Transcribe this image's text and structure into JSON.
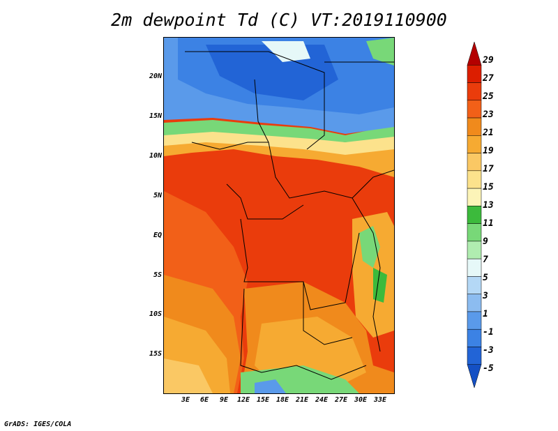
{
  "title": "2m dewpoint Td (C) VT:2019110900",
  "footer": "GrADS: IGES/COLA",
  "y_axis": {
    "labels": [
      "20N",
      "15N",
      "10N",
      "5N",
      "EQ",
      "5S",
      "10S",
      "15S"
    ]
  },
  "x_axis": {
    "labels": [
      "3E",
      "6E",
      "9E",
      "12E",
      "15E",
      "18E",
      "21E",
      "24E",
      "27E",
      "30E",
      "33E"
    ]
  },
  "colorbar": {
    "labels": [
      "29",
      "27",
      "25",
      "23",
      "21",
      "19",
      "17",
      "15",
      "13",
      "11",
      "9",
      "7",
      "5",
      "3",
      "1",
      "-1",
      "-3",
      "-5"
    ],
    "colors": [
      "#b40000",
      "#dc1e00",
      "#ea3c0c",
      "#f26018",
      "#f08a1c",
      "#f6aa32",
      "#fac864",
      "#fce28c",
      "#fcf4b8",
      "#3cba3c",
      "#78d878",
      "#b0ecb0",
      "#e6f8f8",
      "#b4d8f6",
      "#8cbcf0",
      "#5a9aea",
      "#3c82e4",
      "#2264d6",
      "#1450c4"
    ]
  },
  "map": {
    "colors": {
      "cold_blue": "#3c82e4",
      "mid_blue": "#5a9aea",
      "green": "#78d878",
      "pale_yellow": "#fce28c",
      "light_orange": "#fac864",
      "orange": "#f6aa32",
      "deep_orange": "#f26018",
      "red_orange": "#ea3c0c",
      "land_orange": "#f08a1c"
    }
  }
}
